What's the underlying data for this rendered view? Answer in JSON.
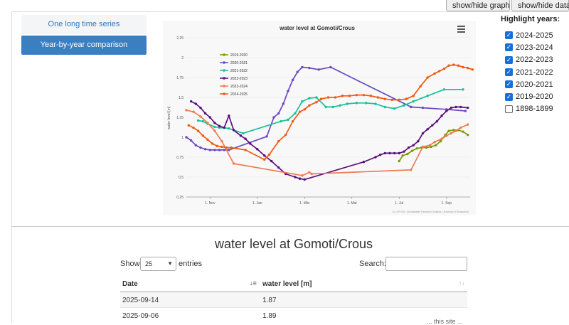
{
  "top_buttons": {
    "graph": "show/hide graph",
    "data": "show/hide data"
  },
  "modes": {
    "one_series": "One long time series",
    "year_by_year": "Year-by-year comparison"
  },
  "highlight": {
    "title": "Highlight years:",
    "years": [
      {
        "label": "2024-2025",
        "checked": true
      },
      {
        "label": "2023-2024",
        "checked": true
      },
      {
        "label": "2022-2023",
        "checked": true
      },
      {
        "label": "2021-2022",
        "checked": true
      },
      {
        "label": "2020-2021",
        "checked": true
      },
      {
        "label": "2019-2020",
        "checked": true
      },
      {
        "label": "1898-1899",
        "checked": false
      }
    ]
  },
  "chart_data": {
    "type": "line",
    "title": "water level at Gomoti/Crous",
    "ylabel": "water level [m]",
    "xlabel": "",
    "ylim": [
      0.25,
      2.25
    ],
    "yticks": [
      0.25,
      0.5,
      0.75,
      1,
      1.25,
      1.5,
      1.75,
      2,
      2.25
    ],
    "ytick_labels": [
      "0,25",
      "0,5",
      "0,75",
      "1",
      "1,25",
      "1,5",
      "1,75",
      "2",
      "2,25"
    ],
    "xlim": [
      0,
      12
    ],
    "xticks": [
      1,
      3,
      5,
      7,
      9,
      11
    ],
    "xtick_labels": [
      "1. Nov",
      "1. Jan",
      "1. Mär",
      "1. Mai",
      "1. Jul",
      "1. Sep"
    ],
    "legend_position": "top-left",
    "grid": true,
    "credit": "(C) SP-SDC (Sustainable Research Institute, University of Botswana)",
    "menu_icon": "hamburger-menu-icon",
    "series": [
      {
        "name": "2019-2020",
        "color": "#7a9a01",
        "x": [
          9.0,
          9.15,
          9.35,
          9.55,
          9.75,
          9.95,
          10.15,
          10.35,
          10.55,
          10.75,
          10.95,
          11.1,
          11.3,
          11.5,
          11.7,
          11.9
        ],
        "y": [
          0.7,
          0.77,
          0.79,
          0.83,
          0.86,
          0.87,
          0.87,
          0.88,
          0.9,
          0.95,
          1.03,
          1.08,
          1.09,
          1.09,
          1.07,
          1.03
        ]
      },
      {
        "name": "2020-2021",
        "color": "#6a47c2",
        "x": [
          0.0,
          0.2,
          0.4,
          0.6,
          0.8,
          1.0,
          1.2,
          1.4,
          1.6,
          1.8,
          3.4,
          3.7,
          3.9,
          4.1,
          4.3,
          4.5,
          4.7,
          4.9,
          5.2,
          5.6,
          6.1,
          9.5,
          10.0,
          11.0,
          11.8
        ],
        "y": [
          1.0,
          0.96,
          0.9,
          0.87,
          0.85,
          0.84,
          0.84,
          0.84,
          0.84,
          0.84,
          1.01,
          1.25,
          1.3,
          1.42,
          1.58,
          1.72,
          1.82,
          1.88,
          1.87,
          1.85,
          1.88,
          1.38,
          1.37,
          1.35,
          1.33
        ]
      },
      {
        "name": "2021-2022",
        "color": "#19c09a",
        "x": [
          0.5,
          0.7,
          0.9,
          1.2,
          1.4,
          1.6,
          1.8,
          2.4,
          4.0,
          4.3,
          4.6,
          4.9,
          5.2,
          5.5,
          5.9,
          6.2,
          6.5,
          6.8,
          7.2,
          7.6,
          8.0,
          8.4,
          8.8,
          9.2,
          9.6,
          10.2,
          10.9,
          11.7
        ],
        "y": [
          1.21,
          1.2,
          1.17,
          1.13,
          1.12,
          1.12,
          1.11,
          1.05,
          1.2,
          1.22,
          1.3,
          1.45,
          1.49,
          1.5,
          1.38,
          1.38,
          1.4,
          1.42,
          1.43,
          1.43,
          1.42,
          1.38,
          1.36,
          1.4,
          1.45,
          1.52,
          1.6,
          1.6
        ]
      },
      {
        "name": "2022-2023",
        "color": "#5c0f7c",
        "x": [
          0.2,
          0.4,
          0.6,
          0.8,
          1.0,
          1.2,
          1.4,
          1.6,
          1.8,
          2.0,
          2.3,
          2.5,
          2.7,
          3.0,
          3.3,
          3.6,
          3.9,
          4.2,
          4.6,
          4.8,
          5.0,
          7.5,
          8.0,
          8.2,
          8.4,
          8.6,
          8.8,
          9.0,
          9.2,
          9.4,
          9.6,
          9.8,
          10.0,
          10.2,
          10.4,
          10.6,
          10.8,
          11.0,
          11.2,
          11.4,
          11.6,
          11.9
        ],
        "y": [
          1.45,
          1.42,
          1.37,
          1.3,
          1.25,
          1.18,
          1.14,
          1.12,
          1.27,
          1.09,
          1.02,
          0.98,
          0.92,
          0.85,
          0.77,
          0.7,
          0.62,
          0.54,
          0.5,
          0.48,
          0.47,
          0.69,
          0.75,
          0.78,
          0.8,
          0.8,
          0.8,
          0.8,
          0.82,
          0.87,
          0.9,
          0.95,
          1.05,
          1.1,
          1.15,
          1.2,
          1.27,
          1.33,
          1.37,
          1.38,
          1.38,
          1.37
        ]
      },
      {
        "name": "2023-2024",
        "color": "#ee7a52",
        "x": [
          0.0,
          0.3,
          0.6,
          0.9,
          1.2,
          1.5,
          2.0,
          4.9,
          5.2,
          5.3,
          9.5,
          10.0,
          10.3,
          10.5,
          10.8,
          11.0,
          11.2,
          11.4,
          11.6,
          11.9
        ],
        "y": [
          1.34,
          1.32,
          1.26,
          1.18,
          1.08,
          0.95,
          0.67,
          0.52,
          0.56,
          0.54,
          0.59,
          0.88,
          0.9,
          0.94,
          0.98,
          1.02,
          1.05,
          1.08,
          1.12,
          1.16
        ]
      },
      {
        "name": "2024-2025",
        "color": "#f05a10",
        "x": [
          0.1,
          0.3,
          0.5,
          0.7,
          0.9,
          1.1,
          1.3,
          1.5,
          1.7,
          1.9,
          2.5,
          3.3,
          3.5,
          3.9,
          4.2,
          4.5,
          4.8,
          5.0,
          5.2,
          5.5,
          5.7,
          6.0,
          6.3,
          6.6,
          6.9,
          7.2,
          7.5,
          7.8,
          8.1,
          8.4,
          8.7,
          9.0,
          9.3,
          9.6,
          9.9,
          10.2,
          10.5,
          10.7,
          10.9,
          11.1,
          11.3,
          11.5,
          11.7,
          11.9,
          12.1
        ],
        "y": [
          1.15,
          1.12,
          1.08,
          1.02,
          0.97,
          0.92,
          0.89,
          0.88,
          0.87,
          0.87,
          0.84,
          0.72,
          0.78,
          0.95,
          1.03,
          1.2,
          1.32,
          1.35,
          1.4,
          1.44,
          1.48,
          1.5,
          1.5,
          1.52,
          1.52,
          1.53,
          1.53,
          1.52,
          1.5,
          1.48,
          1.47,
          1.47,
          1.48,
          1.52,
          1.64,
          1.75,
          1.8,
          1.83,
          1.86,
          1.9,
          1.91,
          1.9,
          1.88,
          1.87,
          1.85
        ]
      }
    ]
  },
  "table": {
    "title": "water level at Gomoti/Crous",
    "show_label": "Show",
    "entries_value": "25",
    "entries_label": "entries",
    "search_label": "Search:",
    "columns": [
      "Date",
      "water level [m]"
    ],
    "rows": [
      [
        "2025-09-14",
        "1.87"
      ],
      [
        "2025-09-06",
        "1.89"
      ]
    ]
  },
  "footer_text": "... this site ... "
}
